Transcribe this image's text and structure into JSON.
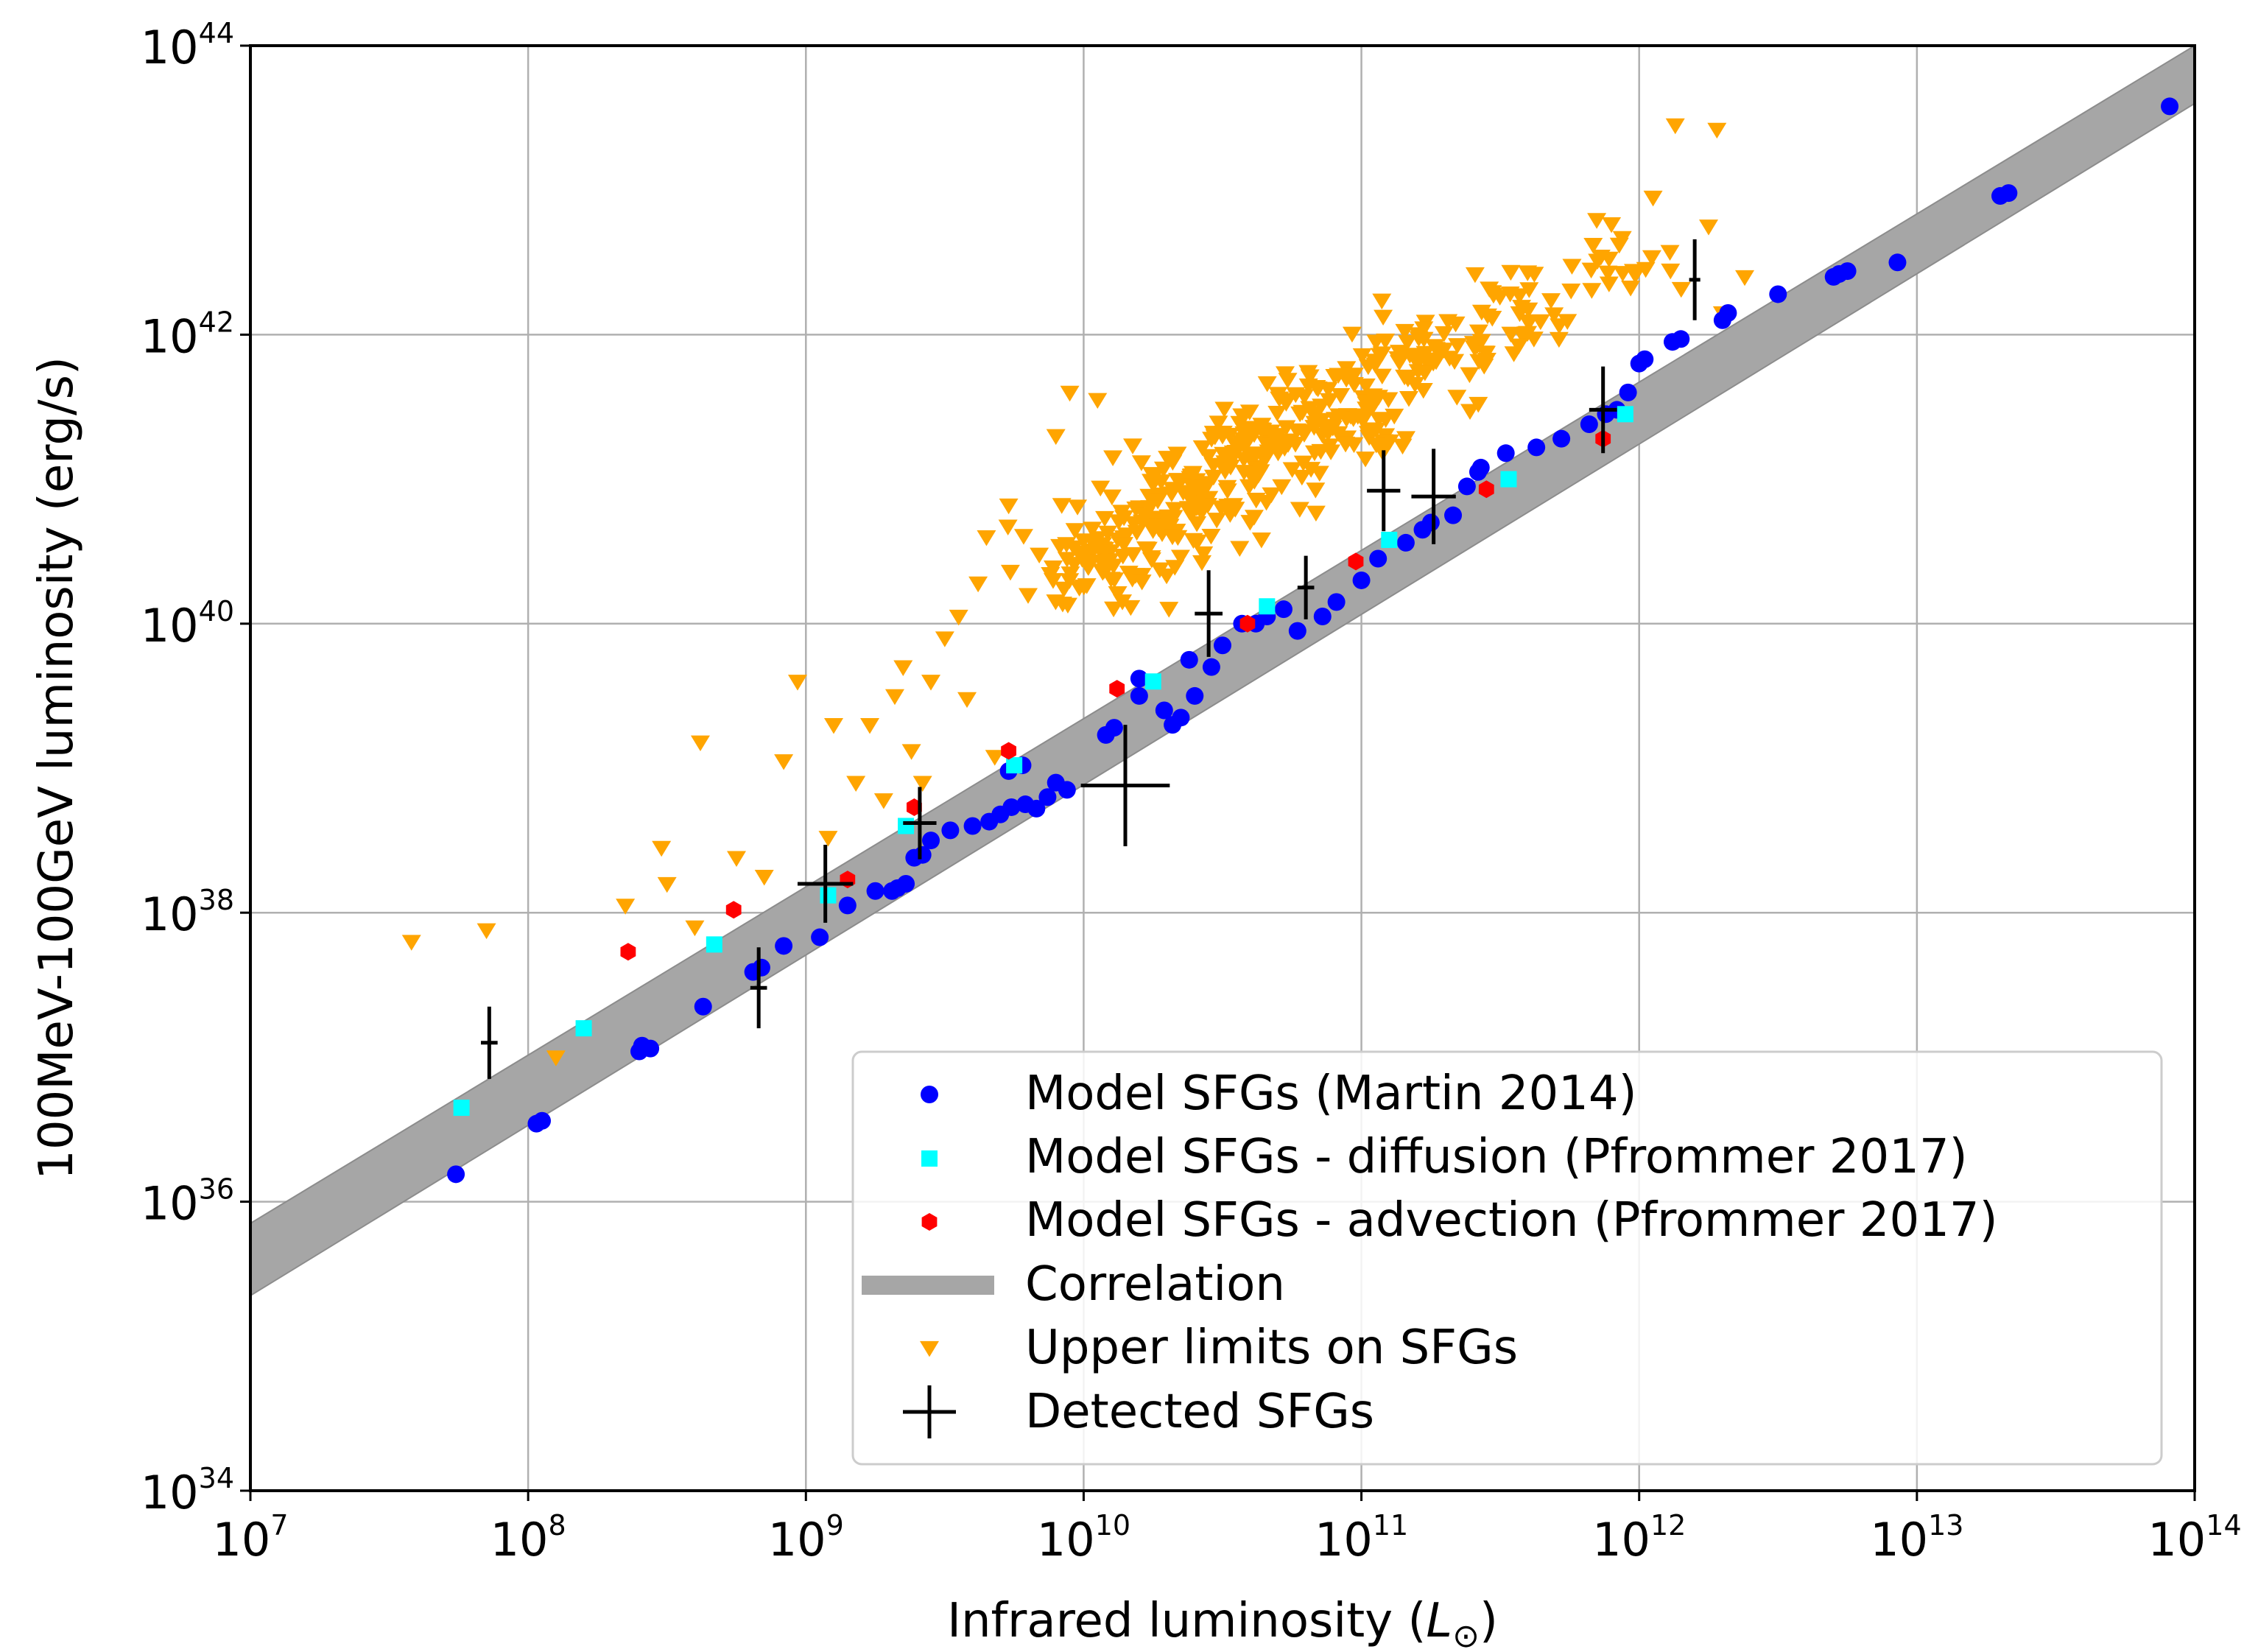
{
  "chart_data": {
    "type": "scatter",
    "title": "",
    "xlabel": "Infrared luminosity",
    "xlabel_symbol": "L",
    "xlabel_subscript": "⊙",
    "ylabel": "100MeV-100GeV luminosity (erg/s)",
    "xscale": "log",
    "yscale": "log",
    "xlim_log10": [
      7,
      14
    ],
    "ylim_log10": [
      34,
      44
    ],
    "x_ticks": [
      {
        "base": "10",
        "exp": "7",
        "log": 7
      },
      {
        "base": "10",
        "exp": "8",
        "log": 8
      },
      {
        "base": "10",
        "exp": "9",
        "log": 9
      },
      {
        "base": "10",
        "exp": "10",
        "log": 10
      },
      {
        "base": "10",
        "exp": "11",
        "log": 11
      },
      {
        "base": "10",
        "exp": "12",
        "log": 12
      },
      {
        "base": "10",
        "exp": "13",
        "log": 13
      },
      {
        "base": "10",
        "exp": "14",
        "log": 14
      }
    ],
    "y_ticks": [
      {
        "base": "10",
        "exp": "34",
        "log": 34
      },
      {
        "base": "10",
        "exp": "36",
        "log": 36
      },
      {
        "base": "10",
        "exp": "38",
        "log": 38
      },
      {
        "base": "10",
        "exp": "40",
        "log": 40
      },
      {
        "base": "10",
        "exp": "42",
        "log": 42
      },
      {
        "base": "10",
        "exp": "44",
        "log": 44
      }
    ],
    "grid": true,
    "legend_position": "lower-right",
    "colors": {
      "martin": "#0000ff",
      "diffusion": "#00ffff",
      "advection": "#ff0000",
      "correlation": "#a6a6a6",
      "upper_limits": "#ffa500",
      "detected": "#000000",
      "grid": "#b0b0b0"
    },
    "correlation_band": {
      "label": "Correlation",
      "upper": [
        [
          7,
          35.85
        ],
        [
          14,
          44.0
        ]
      ],
      "lower": [
        [
          7,
          35.35
        ],
        [
          14,
          43.6
        ]
      ]
    },
    "series": [
      {
        "name": "Model SFGs (Martin 2014)",
        "marker": "circle",
        "color": "#0000ff",
        "points_log": [
          [
            7.74,
            36.19
          ],
          [
            8.05,
            36.56
          ],
          [
            8.03,
            36.54
          ],
          [
            8.4,
            37.04
          ],
          [
            8.41,
            37.08
          ],
          [
            8.44,
            37.06
          ],
          [
            8.63,
            37.35
          ],
          [
            8.81,
            37.59
          ],
          [
            8.84,
            37.62
          ],
          [
            8.92,
            37.77
          ],
          [
            9.05,
            37.83
          ],
          [
            9.15,
            38.05
          ],
          [
            9.25,
            38.15
          ],
          [
            9.33,
            38.17
          ],
          [
            9.36,
            38.2
          ],
          [
            9.31,
            38.15
          ],
          [
            9.39,
            38.38
          ],
          [
            9.42,
            38.4
          ],
          [
            9.45,
            38.5
          ],
          [
            9.52,
            38.57
          ],
          [
            9.6,
            38.6
          ],
          [
            9.66,
            38.63
          ],
          [
            9.7,
            38.68
          ],
          [
            9.74,
            38.73
          ],
          [
            9.79,
            38.75
          ],
          [
            9.83,
            38.72
          ],
          [
            9.73,
            38.98
          ],
          [
            9.78,
            39.02
          ],
          [
            9.87,
            38.8
          ],
          [
            9.9,
            38.9
          ],
          [
            9.94,
            38.85
          ],
          [
            10.08,
            39.23
          ],
          [
            10.11,
            39.28
          ],
          [
            10.2,
            39.5
          ],
          [
            10.2,
            39.62
          ],
          [
            10.29,
            39.4
          ],
          [
            10.32,
            39.3
          ],
          [
            10.35,
            39.35
          ],
          [
            10.4,
            39.5
          ],
          [
            10.46,
            39.7
          ],
          [
            10.38,
            39.75
          ],
          [
            10.5,
            39.85
          ],
          [
            10.57,
            40.0
          ],
          [
            10.62,
            40.0
          ],
          [
            10.66,
            40.05
          ],
          [
            10.72,
            40.1
          ],
          [
            10.77,
            39.95
          ],
          [
            10.86,
            40.05
          ],
          [
            10.91,
            40.15
          ],
          [
            11.0,
            40.3
          ],
          [
            11.06,
            40.45
          ],
          [
            11.16,
            40.56
          ],
          [
            11.22,
            40.65
          ],
          [
            11.25,
            40.7
          ],
          [
            11.33,
            40.75
          ],
          [
            11.38,
            40.95
          ],
          [
            11.42,
            41.05
          ],
          [
            11.43,
            41.08
          ],
          [
            11.52,
            41.18
          ],
          [
            11.63,
            41.22
          ],
          [
            11.72,
            41.28
          ],
          [
            11.82,
            41.38
          ],
          [
            11.88,
            41.45
          ],
          [
            11.92,
            41.48
          ],
          [
            11.96,
            41.6
          ],
          [
            12.0,
            41.8
          ],
          [
            12.02,
            41.83
          ],
          [
            12.12,
            41.95
          ],
          [
            12.15,
            41.97
          ],
          [
            12.3,
            42.1
          ],
          [
            12.32,
            42.15
          ],
          [
            12.5,
            42.28
          ],
          [
            12.7,
            42.4
          ],
          [
            12.72,
            42.42
          ],
          [
            12.75,
            42.44
          ],
          [
            12.93,
            42.5
          ],
          [
            13.3,
            42.96
          ],
          [
            13.33,
            42.98
          ],
          [
            13.91,
            43.58
          ]
        ]
      },
      {
        "name": "Model SFGs - diffusion (Pfrommer 2017)",
        "marker": "square",
        "color": "#00ffff",
        "points_log": [
          [
            7.76,
            36.65
          ],
          [
            8.2,
            37.2
          ],
          [
            8.67,
            37.78
          ],
          [
            9.08,
            38.12
          ],
          [
            9.36,
            38.6
          ],
          [
            9.75,
            39.02
          ],
          [
            10.25,
            39.6
          ],
          [
            10.66,
            40.12
          ],
          [
            11.1,
            40.58
          ],
          [
            11.53,
            41.0
          ],
          [
            11.95,
            41.45
          ]
        ]
      },
      {
        "name": "Model SFGs - advection (Pfrommer 2017)",
        "marker": "hexagon",
        "color": "#ff0000",
        "points_log": [
          [
            8.36,
            37.73
          ],
          [
            8.74,
            38.02
          ],
          [
            9.15,
            38.23
          ],
          [
            9.39,
            38.73
          ],
          [
            9.73,
            39.12
          ],
          [
            10.12,
            39.55
          ],
          [
            10.59,
            40.0
          ],
          [
            10.98,
            40.43
          ],
          [
            11.45,
            40.93
          ],
          [
            11.87,
            41.28
          ]
        ]
      },
      {
        "name": "Upper limits on SFGs",
        "marker": "triangle-down",
        "color": "#ffa500",
        "points_log": [
          [
            7.58,
            37.8
          ],
          [
            7.85,
            37.88
          ],
          [
            8.1,
            37.0
          ],
          [
            8.35,
            38.05
          ],
          [
            8.48,
            38.45
          ],
          [
            8.5,
            38.2
          ],
          [
            8.6,
            37.9
          ],
          [
            8.62,
            39.18
          ],
          [
            8.75,
            38.38
          ],
          [
            8.85,
            38.25
          ],
          [
            8.92,
            39.05
          ],
          [
            8.97,
            39.6
          ],
          [
            9.08,
            38.52
          ],
          [
            9.1,
            39.3
          ],
          [
            9.18,
            38.9
          ],
          [
            9.23,
            39.3
          ],
          [
            9.28,
            38.78
          ],
          [
            9.32,
            39.5
          ],
          [
            9.35,
            39.7
          ],
          [
            9.38,
            39.12
          ],
          [
            9.42,
            38.9
          ],
          [
            9.45,
            39.6
          ],
          [
            9.5,
            39.9
          ],
          [
            9.55,
            40.05
          ],
          [
            9.58,
            39.48
          ],
          [
            9.62,
            40.28
          ],
          [
            9.65,
            40.6
          ],
          [
            9.68,
            39.08
          ],
          [
            9.73,
            40.82
          ],
          [
            9.8,
            40.2
          ],
          [
            9.9,
            41.3
          ],
          [
            9.95,
            41.6
          ],
          [
            10.05,
            41.55
          ]
        ],
        "cloud_groups": [
          {
            "center_log": [
              10.05,
              40.45
            ],
            "spread_log": [
              0.42,
              0.5
            ],
            "count": 80
          },
          {
            "center_log": [
              10.35,
              40.85
            ],
            "spread_log": [
              0.38,
              0.48
            ],
            "count": 90
          },
          {
            "center_log": [
              10.65,
              41.2
            ],
            "spread_log": [
              0.38,
              0.5
            ],
            "count": 90
          },
          {
            "center_log": [
              10.95,
              41.5
            ],
            "spread_log": [
              0.36,
              0.5
            ],
            "count": 80
          },
          {
            "center_log": [
              11.25,
              41.85
            ],
            "spread_log": [
              0.35,
              0.45
            ],
            "count": 60
          },
          {
            "center_log": [
              11.55,
              42.1
            ],
            "spread_log": [
              0.3,
              0.45
            ],
            "count": 35
          },
          {
            "center_log": [
              11.9,
              42.5
            ],
            "spread_log": [
              0.3,
              0.45
            ],
            "count": 22
          }
        ],
        "extra_points_log": [
          [
            12.13,
            43.45
          ],
          [
            12.28,
            43.42
          ],
          [
            12.05,
            42.95
          ],
          [
            12.25,
            42.75
          ],
          [
            12.38,
            42.4
          ],
          [
            12.3,
            42.15
          ]
        ]
      },
      {
        "name": "Detected SFGs",
        "marker": "errorbar-cross",
        "color": "#000000",
        "points_log_xy_xerr_yerr": [
          [
            7.86,
            37.1,
            0.03,
            0.25
          ],
          [
            8.83,
            37.48,
            0.03,
            0.28
          ],
          [
            9.07,
            38.2,
            0.1,
            0.27
          ],
          [
            9.41,
            38.62,
            0.06,
            0.25
          ],
          [
            10.15,
            38.88,
            0.16,
            0.42
          ],
          [
            10.45,
            40.07,
            0.05,
            0.3
          ],
          [
            10.8,
            40.25,
            0.03,
            0.22
          ],
          [
            11.08,
            40.92,
            0.06,
            0.28
          ],
          [
            11.26,
            40.88,
            0.08,
            0.33
          ],
          [
            11.87,
            41.48,
            0.05,
            0.3
          ],
          [
            12.2,
            42.38,
            0.02,
            0.28
          ]
        ]
      }
    ],
    "legend": [
      {
        "label": "Model SFGs (Martin 2014)",
        "key": "martin"
      },
      {
        "label": "Model SFGs - diffusion (Pfrommer 2017)",
        "key": "diffusion"
      },
      {
        "label": "Model SFGs - advection (Pfrommer 2017)",
        "key": "advection"
      },
      {
        "label": "Correlation",
        "key": "correlation"
      },
      {
        "label": "Upper limits on SFGs",
        "key": "upper_limits"
      },
      {
        "label": "Detected SFGs",
        "key": "detected"
      }
    ]
  }
}
